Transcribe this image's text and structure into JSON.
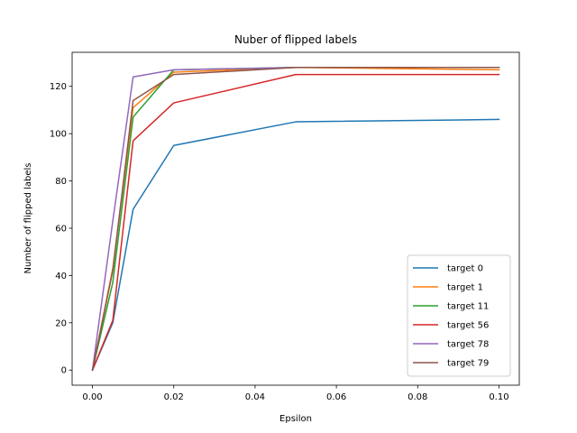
{
  "chart_data": {
    "type": "line",
    "title": "Nuber of flipped labels",
    "xlabel": "Epsilon",
    "ylabel": "Number of flipped labels",
    "xlim": [
      -0.005,
      0.105
    ],
    "ylim": [
      -6.4,
      134.4
    ],
    "x": [
      0.0,
      0.005,
      0.01,
      0.02,
      0.05,
      0.1
    ],
    "x_ticks": [
      0.0,
      0.02,
      0.04,
      0.06,
      0.08,
      0.1
    ],
    "x_tick_labels": [
      "0.00",
      "0.02",
      "0.04",
      "0.06",
      "0.08",
      "0.10"
    ],
    "y_ticks": [
      0,
      20,
      40,
      60,
      80,
      100,
      120
    ],
    "y_tick_labels": [
      "0",
      "20",
      "40",
      "60",
      "80",
      "100",
      "120"
    ],
    "grid": false,
    "legend_position": "lower-right",
    "series": [
      {
        "name": "target 0",
        "color": "#1f77b4",
        "values": [
          0,
          20,
          68,
          95,
          105,
          106
        ]
      },
      {
        "name": "target 1",
        "color": "#ff7f0e",
        "values": [
          0,
          43,
          111,
          126,
          128,
          127
        ]
      },
      {
        "name": "target 11",
        "color": "#2ca02c",
        "values": [
          0,
          37,
          107,
          127,
          128,
          128
        ]
      },
      {
        "name": "target 56",
        "color": "#d62728",
        "values": [
          0,
          21,
          97,
          113,
          125,
          125
        ]
      },
      {
        "name": "target 78",
        "color": "#9467bd",
        "values": [
          0,
          63,
          124,
          127,
          128,
          128
        ]
      },
      {
        "name": "target 79",
        "color": "#8c564b",
        "values": [
          0,
          42,
          114,
          125,
          128,
          128
        ]
      }
    ]
  }
}
